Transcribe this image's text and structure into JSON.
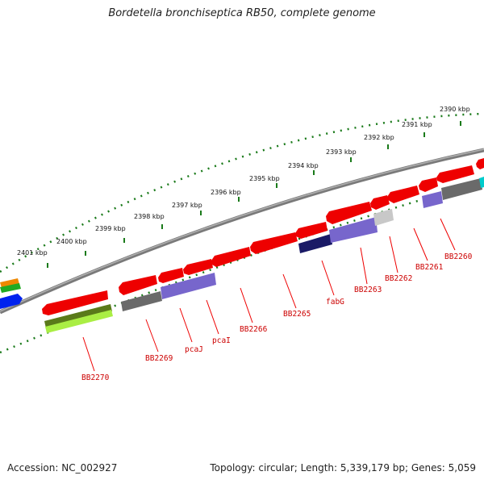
{
  "title": "Bordetella bronchiseptica RB50, complete genome",
  "footer": {
    "accession": "Accession: NC_002927",
    "summary": "Topology: circular; Length: 5,339,179 bp; Genes: 5,059"
  },
  "colors": {
    "backbone": "#7a7a7a",
    "tick": "#1a7a1a",
    "gene_label": "#cc0000",
    "red_gene": "#ee0000",
    "gray_gene": "#6a6a6a",
    "purple_gene": "#7766cc",
    "navy_gene": "#1a1a66",
    "lightgray_gene": "#c8c8c8",
    "olive_gene": "#5a7a1a",
    "lime_gene": "#aaee44",
    "cyan_gene": "#00cccc",
    "blue_gene": "#0022ee",
    "orange_gene": "#ee8800",
    "green_gene": "#22aa22"
  },
  "kbp_labels": [
    "2390 kbp",
    "2391 kbp",
    "2392 kbp",
    "2393 kbp",
    "2394 kbp",
    "2395 kbp",
    "2396 kbp",
    "2397 kbp",
    "2398 kbp",
    "2399 kbp",
    "2400 kbp",
    "2401 kbp"
  ],
  "gene_labels": [
    "BB2260",
    "BB2261",
    "BB2262",
    "BB2263",
    "fabG",
    "BB2265",
    "BB2266",
    "pcaI",
    "pcaJ",
    "BB2269",
    "BB2270"
  ]
}
